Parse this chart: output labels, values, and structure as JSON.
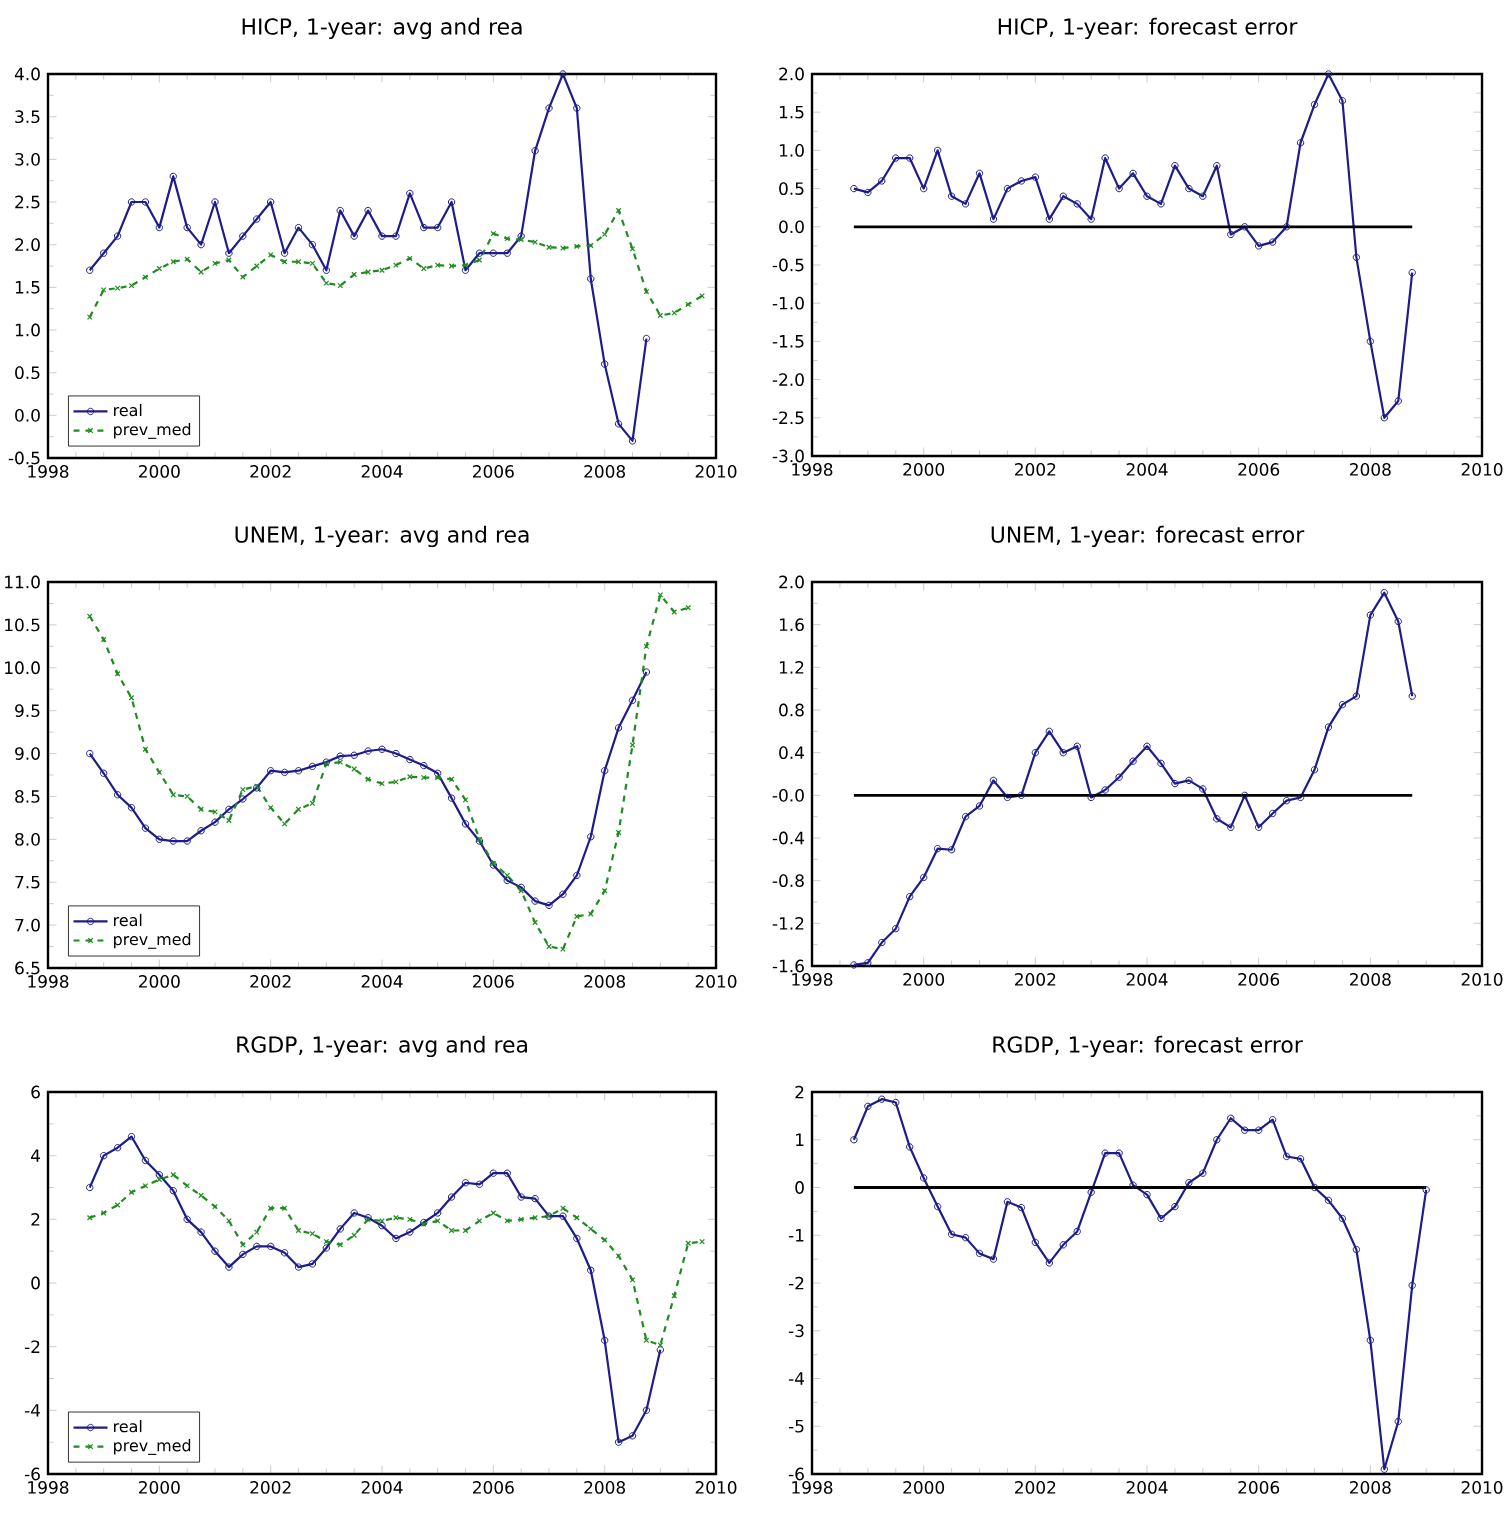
{
  "chart_data": [
    {
      "type": "line",
      "title": "HICP, 1-year: avg and rea",
      "xlim": [
        1998,
        2010
      ],
      "xticks": [
        1998,
        2000,
        2002,
        2004,
        2006,
        2008,
        2010
      ],
      "ylim": [
        -0.5,
        4.0
      ],
      "yticks": [
        -0.5,
        {
          "value": 0,
          "label": "0.0"
        },
        0.5,
        {
          "value": 1,
          "label": "1.0"
        },
        1.5,
        {
          "value": 2,
          "label": "2.0"
        },
        2.5,
        {
          "value": 3,
          "label": "3.0"
        },
        3.5,
        {
          "value": 4,
          "label": "4.0"
        }
      ],
      "legend": "bottom left",
      "series": [
        {
          "name": "real",
          "color": "#1c1c8a",
          "marker": "circle",
          "line_style": "solid",
          "x": [
            1998.75,
            1999,
            1999.25,
            1999.5,
            1999.75,
            2000,
            2000.25,
            2000.5,
            2000.75,
            2001,
            2001.25,
            2001.5,
            2001.75,
            2002,
            2002.25,
            2002.5,
            2002.75,
            2003,
            2003.25,
            2003.5,
            2003.75,
            2004,
            2004.25,
            2004.5,
            2004.75,
            2005,
            2005.25,
            2005.5,
            2005.75,
            2006,
            2006.25,
            2006.5,
            2006.75,
            2007,
            2007.25,
            2007.5,
            2007.75,
            2008,
            2008.25,
            2008.5,
            2008.75
          ],
          "values": [
            1.7,
            1.9,
            2.1,
            2.5,
            2.5,
            2.2,
            2.8,
            2.2,
            2.0,
            2.5,
            1.9,
            2.1,
            2.3,
            2.5,
            1.9,
            2.2,
            2.0,
            1.7,
            2.4,
            2.1,
            2.4,
            2.1,
            2.1,
            2.6,
            2.2,
            2.2,
            2.5,
            1.7,
            1.9,
            1.9,
            1.9,
            2.1,
            3.1,
            3.6,
            4.0,
            3.6,
            1.6,
            0.6,
            -0.1,
            -0.3,
            0.9
          ]
        },
        {
          "name": "prev_med",
          "color": "#1e8c1e",
          "marker": "cross",
          "line_style": "dashed",
          "x": [
            1998.75,
            1999,
            1999.25,
            1999.5,
            1999.75,
            2000,
            2000.25,
            2000.5,
            2000.75,
            2001,
            2001.25,
            2001.5,
            2001.75,
            2002,
            2002.25,
            2002.5,
            2002.75,
            2003,
            2003.25,
            2003.5,
            2003.75,
            2004,
            2004.25,
            2004.5,
            2004.75,
            2005,
            2005.25,
            2005.5,
            2005.75,
            2006,
            2006.25,
            2006.5,
            2006.75,
            2007,
            2007.25,
            2007.5,
            2007.75,
            2008,
            2008.25,
            2008.5,
            2008.75,
            2009,
            2009.25,
            2009.5,
            2009.75
          ],
          "values": [
            1.15,
            1.47,
            1.49,
            1.52,
            1.62,
            1.72,
            1.8,
            1.83,
            1.68,
            1.78,
            1.82,
            1.62,
            1.75,
            1.88,
            1.8,
            1.8,
            1.78,
            1.55,
            1.52,
            1.65,
            1.68,
            1.7,
            1.76,
            1.84,
            1.72,
            1.76,
            1.75,
            1.76,
            1.82,
            2.13,
            2.07,
            2.06,
            2.03,
            1.97,
            1.96,
            1.98,
            1.99,
            2.12,
            2.4,
            1.95,
            1.45,
            1.17,
            1.2,
            1.3,
            1.4
          ]
        }
      ]
    },
    {
      "type": "line",
      "title": "HICP, 1-year: forecast error",
      "xlim": [
        1998,
        2010
      ],
      "xticks": [
        1998,
        2000,
        2002,
        2004,
        2006,
        2008,
        2010
      ],
      "ylim": [
        -3.0,
        2.0
      ],
      "yticks": [
        {
          "value": -3,
          "label": "-3.0"
        },
        -2.5,
        {
          "value": -2,
          "label": "-2.0"
        },
        -1.5,
        {
          "value": -1,
          "label": "-1.0"
        },
        -0.5,
        {
          "value": 0,
          "label": "0.0"
        },
        0.5,
        {
          "value": 1,
          "label": "1.0"
        },
        1.5,
        {
          "value": 2,
          "label": "2.0"
        }
      ],
      "ref_lines": [
        {
          "axis": "y",
          "value": 0,
          "color": "#000000"
        }
      ],
      "series": [
        {
          "color": "#1c1c8a",
          "marker": "circle",
          "line_style": "solid",
          "x": [
            1998.75,
            1999,
            1999.25,
            1999.5,
            1999.75,
            2000,
            2000.25,
            2000.5,
            2000.75,
            2001,
            2001.25,
            2001.5,
            2001.75,
            2002,
            2002.25,
            2002.5,
            2002.75,
            2003,
            2003.25,
            2003.5,
            2003.75,
            2004,
            2004.25,
            2004.5,
            2004.75,
            2005,
            2005.25,
            2005.5,
            2005.75,
            2006,
            2006.25,
            2006.5,
            2006.75,
            2007,
            2007.25,
            2007.5,
            2007.75,
            2008,
            2008.25,
            2008.5,
            2008.75
          ],
          "values": [
            0.5,
            0.45,
            0.6,
            0.9,
            0.9,
            0.5,
            1.0,
            0.4,
            0.3,
            0.7,
            0.1,
            0.5,
            0.6,
            0.65,
            0.1,
            0.4,
            0.3,
            0.1,
            0.9,
            0.5,
            0.7,
            0.4,
            0.3,
            0.8,
            0.5,
            0.4,
            0.8,
            -0.1,
            0.0,
            -0.25,
            -0.2,
            0.0,
            1.1,
            1.6,
            2.0,
            1.65,
            -0.4,
            -1.5,
            -2.5,
            -2.28,
            -0.6
          ]
        }
      ]
    },
    {
      "type": "line",
      "title": "UNEM, 1-year: avg and rea",
      "xlim": [
        1998,
        2010
      ],
      "xticks": [
        1998,
        2000,
        2002,
        2004,
        2006,
        2008,
        2010
      ],
      "ylim": [
        6.5,
        11.0
      ],
      "yticks": [
        6.5,
        {
          "value": 7,
          "label": "7.0"
        },
        7.5,
        {
          "value": 8,
          "label": "8.0"
        },
        8.5,
        {
          "value": 9,
          "label": "9.0"
        },
        9.5,
        {
          "value": 10,
          "label": "10.0"
        },
        10.5,
        {
          "value": 11,
          "label": "11.0"
        }
      ],
      "legend": "bottom left",
      "series": [
        {
          "name": "real",
          "color": "#1c1c8a",
          "marker": "circle",
          "line_style": "solid",
          "x": [
            1998.75,
            1999,
            1999.25,
            1999.5,
            1999.75,
            2000,
            2000.25,
            2000.5,
            2000.75,
            2001,
            2001.25,
            2001.5,
            2001.75,
            2002,
            2002.25,
            2002.5,
            2002.75,
            2003,
            2003.25,
            2003.5,
            2003.75,
            2004,
            2004.25,
            2004.5,
            2004.75,
            2005,
            2005.25,
            2005.5,
            2005.75,
            2006,
            2006.25,
            2006.5,
            2006.75,
            2007,
            2007.25,
            2007.5,
            2007.75,
            2008,
            2008.25,
            2008.5,
            2008.75
          ],
          "values": [
            9.0,
            8.77,
            8.52,
            8.37,
            8.13,
            8.0,
            7.98,
            7.98,
            8.1,
            8.2,
            8.35,
            8.47,
            8.6,
            8.8,
            8.78,
            8.8,
            8.85,
            8.9,
            8.97,
            8.98,
            9.03,
            9.05,
            9.0,
            8.93,
            8.86,
            8.77,
            8.48,
            8.18,
            7.98,
            7.7,
            7.52,
            7.44,
            7.28,
            7.23,
            7.36,
            7.58,
            8.03,
            8.8,
            9.3,
            9.62,
            9.95
          ]
        },
        {
          "name": "prev_med",
          "color": "#1e8c1e",
          "marker": "cross",
          "line_style": "dashed",
          "x": [
            1998.75,
            1999,
            1999.25,
            1999.5,
            1999.75,
            2000,
            2000.25,
            2000.5,
            2000.75,
            2001,
            2001.25,
            2001.5,
            2001.75,
            2002,
            2002.25,
            2002.5,
            2002.75,
            2003,
            2003.25,
            2003.5,
            2003.75,
            2004,
            2004.25,
            2004.5,
            2004.75,
            2005,
            2005.25,
            2005.5,
            2005.75,
            2006,
            2006.25,
            2006.5,
            2006.75,
            2007,
            2007.25,
            2007.5,
            2007.75,
            2008,
            2008.25,
            2008.5,
            2008.75,
            2009,
            2009.25,
            2009.5
          ],
          "values": [
            10.6,
            10.33,
            9.93,
            9.65,
            9.05,
            8.78,
            8.52,
            8.5,
            8.35,
            8.32,
            8.22,
            8.58,
            8.62,
            8.37,
            8.18,
            8.35,
            8.42,
            8.88,
            8.9,
            8.82,
            8.7,
            8.65,
            8.67,
            8.73,
            8.72,
            8.72,
            8.7,
            8.46,
            8.0,
            7.72,
            7.58,
            7.4,
            7.03,
            6.75,
            6.72,
            7.1,
            7.13,
            7.4,
            8.08,
            9.1,
            10.25,
            10.85,
            10.65,
            10.7
          ]
        }
      ]
    },
    {
      "type": "line",
      "title": "UNEM, 1-year: forecast error",
      "xlim": [
        1998,
        2010
      ],
      "xticks": [
        1998,
        2000,
        2002,
        2004,
        2006,
        2008,
        2010
      ],
      "ylim": [
        -1.6,
        2.0
      ],
      "yticks": [
        -1.6,
        -1.2,
        -0.8,
        -0.4,
        {
          "value": 0,
          "label": "-0.0"
        },
        0.4,
        0.8,
        1.2,
        1.6,
        {
          "value": 2,
          "label": "2.0"
        }
      ],
      "ref_lines": [
        {
          "axis": "y",
          "value": 0,
          "color": "#000000"
        }
      ],
      "series": [
        {
          "color": "#1c1c8a",
          "marker": "circle",
          "line_style": "solid",
          "x": [
            1998.75,
            1999,
            1999.25,
            1999.5,
            1999.75,
            2000,
            2000.25,
            2000.5,
            2000.75,
            2001,
            2001.25,
            2001.5,
            2001.75,
            2002,
            2002.25,
            2002.5,
            2002.75,
            2003,
            2003.25,
            2003.5,
            2003.75,
            2004,
            2004.25,
            2004.5,
            2004.75,
            2005,
            2005.25,
            2005.5,
            2005.75,
            2006,
            2006.25,
            2006.5,
            2006.75,
            2007,
            2007.25,
            2007.5,
            2007.75,
            2008,
            2008.25,
            2008.5,
            2008.75
          ],
          "values": [
            -1.59,
            -1.57,
            -1.38,
            -1.25,
            -0.95,
            -0.77,
            -0.5,
            -0.51,
            -0.2,
            -0.1,
            0.14,
            -0.02,
            0.0,
            0.4,
            0.6,
            0.4,
            0.46,
            -0.02,
            0.05,
            0.17,
            0.32,
            0.46,
            0.3,
            0.11,
            0.14,
            0.06,
            -0.22,
            -0.3,
            0.0,
            -0.3,
            -0.17,
            -0.05,
            -0.02,
            0.24,
            0.64,
            0.85,
            0.93,
            1.69,
            1.9,
            1.63,
            0.93
          ]
        }
      ]
    },
    {
      "type": "line",
      "title": "RGDP, 1-year: avg and rea",
      "xlim": [
        1998,
        2010
      ],
      "xticks": [
        1998,
        2000,
        2002,
        2004,
        2006,
        2008,
        2010
      ],
      "ylim": [
        -6,
        6
      ],
      "yticks": [
        -6,
        -4,
        -2,
        0,
        2,
        4,
        6
      ],
      "legend": "bottom left",
      "series": [
        {
          "name": "real",
          "color": "#1c1c8a",
          "marker": "circle",
          "line_style": "solid",
          "x": [
            1998.75,
            1999,
            1999.25,
            1999.5,
            1999.75,
            2000,
            2000.25,
            2000.5,
            2000.75,
            2001,
            2001.25,
            2001.5,
            2001.75,
            2002,
            2002.25,
            2002.5,
            2002.75,
            2003,
            2003.25,
            2003.5,
            2003.75,
            2004,
            2004.25,
            2004.5,
            2004.75,
            2005,
            2005.25,
            2005.5,
            2005.75,
            2006,
            2006.25,
            2006.5,
            2006.75,
            2007,
            2007.25,
            2007.5,
            2007.75,
            2008,
            2008.25,
            2008.5,
            2008.75,
            2009
          ],
          "values": [
            3.0,
            4.0,
            4.25,
            4.6,
            3.85,
            3.4,
            2.9,
            2.0,
            1.6,
            1.0,
            0.5,
            0.9,
            1.15,
            1.15,
            0.95,
            0.5,
            0.6,
            1.1,
            1.7,
            2.2,
            2.05,
            1.8,
            1.4,
            1.6,
            1.9,
            2.2,
            2.7,
            3.15,
            3.1,
            3.45,
            3.45,
            2.7,
            2.65,
            2.1,
            2.1,
            1.4,
            0.4,
            -1.8,
            -5.0,
            -4.8,
            -4.0,
            -2.1
          ]
        },
        {
          "name": "prev_med",
          "color": "#1e8c1e",
          "marker": "cross",
          "line_style": "dashed",
          "x": [
            1998.75,
            1999,
            1999.25,
            1999.5,
            1999.75,
            2000,
            2000.25,
            2000.5,
            2000.75,
            2001,
            2001.25,
            2001.5,
            2001.75,
            2002,
            2002.25,
            2002.5,
            2002.75,
            2003,
            2003.25,
            2003.5,
            2003.75,
            2004,
            2004.25,
            2004.5,
            2004.75,
            2005,
            2005.25,
            2005.5,
            2005.75,
            2006,
            2006.25,
            2006.5,
            2006.75,
            2007,
            2007.25,
            2007.5,
            2007.75,
            2008,
            2008.25,
            2008.5,
            2008.75,
            2009,
            2009.25,
            2009.5,
            2009.75
          ],
          "values": [
            2.05,
            2.2,
            2.45,
            2.85,
            3.05,
            3.25,
            3.4,
            3.05,
            2.75,
            2.4,
            1.95,
            1.2,
            1.6,
            2.35,
            2.35,
            1.65,
            1.55,
            1.3,
            1.2,
            1.5,
            2.0,
            1.95,
            2.05,
            2.0,
            1.85,
            1.95,
            1.65,
            1.65,
            1.95,
            2.2,
            1.95,
            2.0,
            2.05,
            2.1,
            2.35,
            2.05,
            1.7,
            1.35,
            0.85,
            0.1,
            -1.8,
            -1.95,
            -0.4,
            1.25,
            1.3
          ]
        }
      ]
    },
    {
      "type": "line",
      "title": "RGDP, 1-year: forecast error",
      "xlim": [
        1998,
        2010
      ],
      "xticks": [
        1998,
        2000,
        2002,
        2004,
        2006,
        2008,
        2010
      ],
      "ylim": [
        -6,
        2
      ],
      "yticks": [
        -6,
        -5,
        -4,
        -3,
        -2,
        -1,
        0,
        1,
        2
      ],
      "ref_lines": [
        {
          "axis": "y",
          "value": 0,
          "color": "#000000"
        }
      ],
      "series": [
        {
          "color": "#1c1c8a",
          "marker": "circle",
          "line_style": "solid",
          "x": [
            1998.75,
            1999,
            1999.25,
            1999.5,
            1999.75,
            2000,
            2000.25,
            2000.5,
            2000.75,
            2001,
            2001.25,
            2001.5,
            2001.75,
            2002,
            2002.25,
            2002.5,
            2002.75,
            2003,
            2003.25,
            2003.5,
            2003.75,
            2004,
            2004.25,
            2004.5,
            2004.75,
            2005,
            2005.25,
            2005.5,
            2005.75,
            2006,
            2006.25,
            2006.5,
            2006.75,
            2007,
            2007.25,
            2007.5,
            2007.75,
            2008,
            2008.25,
            2008.5,
            2008.75,
            2009
          ],
          "values": [
            1.0,
            1.7,
            1.85,
            1.78,
            0.85,
            0.2,
            -0.4,
            -0.98,
            -1.05,
            -1.38,
            -1.5,
            -0.3,
            -0.42,
            -1.15,
            -1.58,
            -1.2,
            -0.92,
            -0.1,
            0.72,
            0.72,
            0.05,
            -0.15,
            -0.65,
            -0.4,
            0.1,
            0.3,
            1.0,
            1.45,
            1.2,
            1.2,
            1.42,
            0.65,
            0.6,
            0.0,
            -0.27,
            -0.65,
            -1.3,
            -3.2,
            -5.9,
            -4.9,
            -2.05,
            -0.05
          ]
        }
      ]
    }
  ]
}
